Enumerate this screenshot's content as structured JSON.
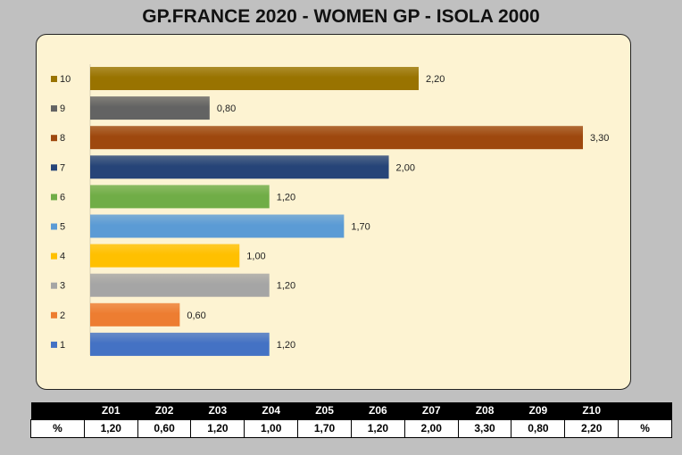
{
  "title": "GP.FRANCE 2020 - WOMEN GP - ISOLA 2000",
  "chart_data": {
    "type": "bar",
    "orientation": "horizontal",
    "categories": [
      "1",
      "2",
      "3",
      "4",
      "5",
      "6",
      "7",
      "8",
      "9",
      "10"
    ],
    "values": [
      1.2,
      0.6,
      1.2,
      1.0,
      1.7,
      1.2,
      2.0,
      3.3,
      0.8,
      2.2
    ],
    "value_labels": [
      "1,20",
      "0,60",
      "1,20",
      "1,00",
      "1,70",
      "1,20",
      "2,00",
      "3,30",
      "0,80",
      "2,20"
    ],
    "colors": [
      "#4472c4",
      "#ed7d31",
      "#a5a5a5",
      "#ffc000",
      "#5b9bd5",
      "#70ad47",
      "#264478",
      "#9e480e",
      "#636363",
      "#997300"
    ],
    "legend_position": "left",
    "grid": false,
    "xlim": [
      0,
      3.3
    ]
  },
  "table": {
    "headers": [
      "",
      "Z01",
      "Z02",
      "Z03",
      "Z04",
      "Z05",
      "Z06",
      "Z07",
      "Z08",
      "Z09",
      "Z10",
      ""
    ],
    "row": [
      "%",
      "1,20",
      "0,60",
      "1,20",
      "1,00",
      "1,70",
      "1,20",
      "2,00",
      "3,30",
      "0,80",
      "2,20",
      "%"
    ]
  }
}
